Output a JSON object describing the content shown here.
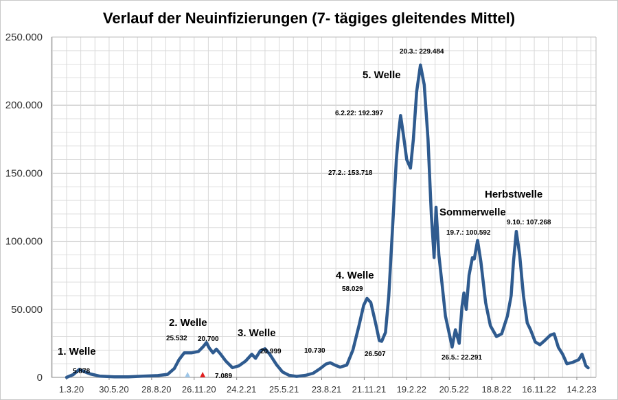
{
  "chart_data": {
    "type": "line",
    "title": "Verlauf der Neuinfizierungen (7- tägiges gleitendes Mittel)",
    "xlabel": "",
    "ylabel": "",
    "x_ticks": [
      "1.3.20",
      "30.5.20",
      "28.8.20",
      "26.11.20",
      "24.2.21",
      "25.5.21",
      "23.8.21",
      "21.11.21",
      "19.2.22",
      "20.5.22",
      "18.8.22",
      "16.11.22",
      "14.2.23"
    ],
    "y_ticks": [
      "0",
      "50.000",
      "100.000",
      "150.000",
      "200.000",
      "250.000"
    ],
    "ylim": [
      0,
      250000
    ],
    "xlim": [
      "2020-03-01",
      "2023-03-15"
    ],
    "grid": true,
    "line_color": "#2f5b8f",
    "series": [
      {
        "points": [
          [
            "2020-03-01",
            0
          ],
          [
            "2020-03-15",
            2000
          ],
          [
            "2020-03-28",
            5878
          ],
          [
            "2020-04-05",
            4600
          ],
          [
            "2020-04-20",
            2500
          ],
          [
            "2020-05-10",
            900
          ],
          [
            "2020-06-10",
            350
          ],
          [
            "2020-07-10",
            400
          ],
          [
            "2020-08-10",
            900
          ],
          [
            "2020-09-10",
            1300
          ],
          [
            "2020-10-01",
            2200
          ],
          [
            "2020-10-15",
            6500
          ],
          [
            "2020-10-25",
            13000
          ],
          [
            "2020-11-05",
            18000
          ],
          [
            "2020-11-20",
            18000
          ],
          [
            "2020-12-05",
            19000
          ],
          [
            "2020-12-15",
            22500
          ],
          [
            "2020-12-22",
            25532
          ],
          [
            "2020-12-28",
            21500
          ],
          [
            "2021-01-05",
            18000
          ],
          [
            "2021-01-12",
            20700
          ],
          [
            "2021-01-20",
            17500
          ],
          [
            "2021-02-01",
            12000
          ],
          [
            "2021-02-15",
            7089
          ],
          [
            "2021-03-01",
            8500
          ],
          [
            "2021-03-15",
            12000
          ],
          [
            "2021-03-28",
            17000
          ],
          [
            "2021-04-05",
            14000
          ],
          [
            "2021-04-15",
            19500
          ],
          [
            "2021-04-25",
            20999
          ],
          [
            "2021-05-05",
            17000
          ],
          [
            "2021-05-20",
            9000
          ],
          [
            "2021-06-01",
            4000
          ],
          [
            "2021-06-15",
            1500
          ],
          [
            "2021-07-01",
            700
          ],
          [
            "2021-07-20",
            1500
          ],
          [
            "2021-08-05",
            3000
          ],
          [
            "2021-08-20",
            6500
          ],
          [
            "2021-09-01",
            9800
          ],
          [
            "2021-09-10",
            10730
          ],
          [
            "2021-09-20",
            9000
          ],
          [
            "2021-10-01",
            7500
          ],
          [
            "2021-10-15",
            9000
          ],
          [
            "2021-10-28",
            20000
          ],
          [
            "2021-11-10",
            38000
          ],
          [
            "2021-11-20",
            53000
          ],
          [
            "2021-11-27",
            58029
          ],
          [
            "2021-12-05",
            55000
          ],
          [
            "2021-12-15",
            40000
          ],
          [
            "2021-12-23",
            27000
          ],
          [
            "2021-12-28",
            26507
          ],
          [
            "2022-01-05",
            33000
          ],
          [
            "2022-01-12",
            60000
          ],
          [
            "2022-01-20",
            110000
          ],
          [
            "2022-01-28",
            160000
          ],
          [
            "2022-02-02",
            180000
          ],
          [
            "2022-02-06",
            192397
          ],
          [
            "2022-02-12",
            178000
          ],
          [
            "2022-02-19",
            160000
          ],
          [
            "2022-02-27",
            153718
          ],
          [
            "2022-03-05",
            175000
          ],
          [
            "2022-03-12",
            210000
          ],
          [
            "2022-03-20",
            229484
          ],
          [
            "2022-03-28",
            215000
          ],
          [
            "2022-04-05",
            175000
          ],
          [
            "2022-04-12",
            120000
          ],
          [
            "2022-04-18",
            88000
          ],
          [
            "2022-04-22",
            125000
          ],
          [
            "2022-04-28",
            90000
          ],
          [
            "2022-05-05",
            68000
          ],
          [
            "2022-05-12",
            45000
          ],
          [
            "2022-05-20",
            32000
          ],
          [
            "2022-05-26",
            22291
          ],
          [
            "2022-06-02",
            35000
          ],
          [
            "2022-06-10",
            25000
          ],
          [
            "2022-06-16",
            52000
          ],
          [
            "2022-06-20",
            62000
          ],
          [
            "2022-06-25",
            50000
          ],
          [
            "2022-07-01",
            75000
          ],
          [
            "2022-07-08",
            88000
          ],
          [
            "2022-07-12",
            87000
          ],
          [
            "2022-07-19",
            100592
          ],
          [
            "2022-07-26",
            85000
          ],
          [
            "2022-08-05",
            55000
          ],
          [
            "2022-08-15",
            38000
          ],
          [
            "2022-08-28",
            30000
          ],
          [
            "2022-09-08",
            32000
          ],
          [
            "2022-09-20",
            45000
          ],
          [
            "2022-09-28",
            60000
          ],
          [
            "2022-10-03",
            85000
          ],
          [
            "2022-10-09",
            107268
          ],
          [
            "2022-10-16",
            90000
          ],
          [
            "2022-10-24",
            60000
          ],
          [
            "2022-11-01",
            40000
          ],
          [
            "2022-11-08",
            35000
          ],
          [
            "2022-11-18",
            26000
          ],
          [
            "2022-11-28",
            24000
          ],
          [
            "2022-12-08",
            27000
          ],
          [
            "2022-12-20",
            31000
          ],
          [
            "2022-12-28",
            32000
          ],
          [
            "2023-01-06",
            22000
          ],
          [
            "2023-01-15",
            17000
          ],
          [
            "2023-01-24",
            10000
          ],
          [
            "2023-02-05",
            11000
          ],
          [
            "2023-02-18",
            13000
          ],
          [
            "2023-02-25",
            17000
          ],
          [
            "2023-03-01",
            13000
          ],
          [
            "2023-03-05",
            8500
          ],
          [
            "2023-03-10",
            7000
          ]
        ]
      }
    ],
    "wave_labels": [
      "1. Welle",
      "2. Welle",
      "3. Welle",
      "4. Welle",
      "5. Welle",
      "Sommerwelle",
      "Herbstwelle"
    ],
    "data_labels": [
      "5.878",
      "25.532",
      "20.700",
      "7.089",
      "20.999",
      "10.730",
      "58.029",
      "26.507",
      "6.2.22: 192.397",
      "27.2.: 153.718",
      "20.3.: 229.484",
      "26.5.: 22.291",
      "19.7.: 100.592",
      "9.10.: 107.268"
    ],
    "markers": [
      {
        "date": "2020-11-12",
        "color": "#9ec6e8"
      },
      {
        "date": "2020-12-14",
        "color": "#e02020"
      }
    ]
  }
}
